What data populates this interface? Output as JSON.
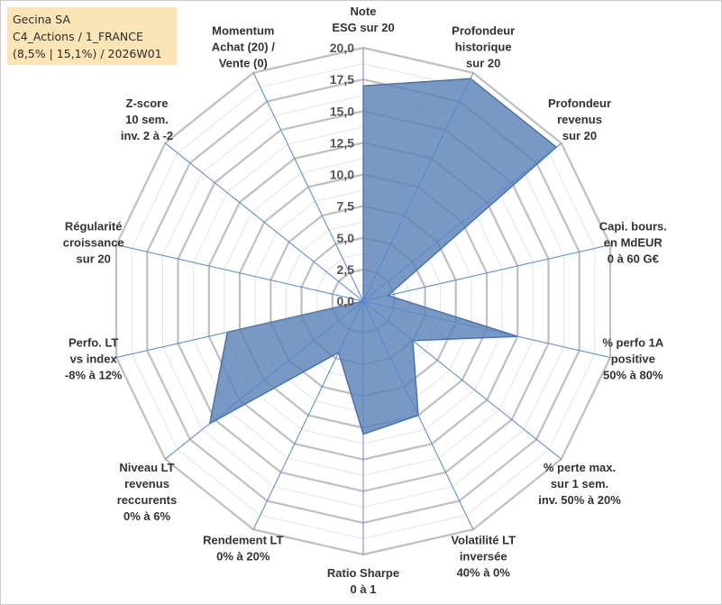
{
  "header": {
    "line1": "Gecina SA",
    "line2": "C4_Actions / 1_FRANCE",
    "line3": "(8,5% | 15,1%) / 2026W01"
  },
  "colors": {
    "series_fill": "#5b82b8",
    "series_stroke": "#4a72ab",
    "grid": "#bfbfbf",
    "spoke": "#5b8dd6",
    "info_box": "#fbe5b6"
  },
  "chart_data": {
    "type": "radar",
    "rmin": 0,
    "rmax": 20,
    "tick_values": [
      0,
      2.5,
      5,
      7.5,
      10,
      12.5,
      15,
      17.5,
      20
    ],
    "tick_labels": [
      "0,0",
      "2,5",
      "5,0",
      "7,5",
      "10,0",
      "12,5",
      "15,0",
      "17,5",
      "20,0"
    ],
    "axes": [
      {
        "label": [
          "Note",
          "ESG sur 20"
        ]
      },
      {
        "label": [
          "Profondeur",
          "historique",
          "sur 20"
        ]
      },
      {
        "label": [
          "Profondeur",
          "revenus",
          "sur 20"
        ]
      },
      {
        "label": [
          "Capi. bours.",
          "en MdEUR",
          "0 à 60 G€"
        ]
      },
      {
        "label": [
          "% perfo 1A",
          "positive",
          "50% à 80%"
        ]
      },
      {
        "label": [
          "% perte max.",
          "sur 1 sem.",
          "inv. 50% à 20%"
        ]
      },
      {
        "label": [
          "Volatilité LT",
          "inversée",
          "40% à 0%"
        ]
      },
      {
        "label": [
          "Ratio Sharpe",
          "0 à 1"
        ]
      },
      {
        "label": [
          "Rendement LT",
          "0% à 20%"
        ]
      },
      {
        "label": [
          "Niveau LT",
          "revenus",
          "reccurents",
          "0% à 6%"
        ]
      },
      {
        "label": [
          "Perfo. LT",
          "vs index",
          "-8% à 12%"
        ]
      },
      {
        "label": [
          "Régularité",
          "croissance",
          "sur 20"
        ]
      },
      {
        "label": [
          "Z-score",
          "10 sem.",
          "inv. 2 à -2"
        ]
      },
      {
        "label": [
          "Momentum",
          "Achat (20) /",
          "Vente (0)"
        ]
      }
    ],
    "series": [
      {
        "name": "Gecina SA",
        "values": [
          17.0,
          19.5,
          19.5,
          2.0,
          12.5,
          5.0,
          10.0,
          10.5,
          4.5,
          15.5,
          11.0,
          0.0,
          0.0,
          0.0
        ]
      }
    ]
  }
}
